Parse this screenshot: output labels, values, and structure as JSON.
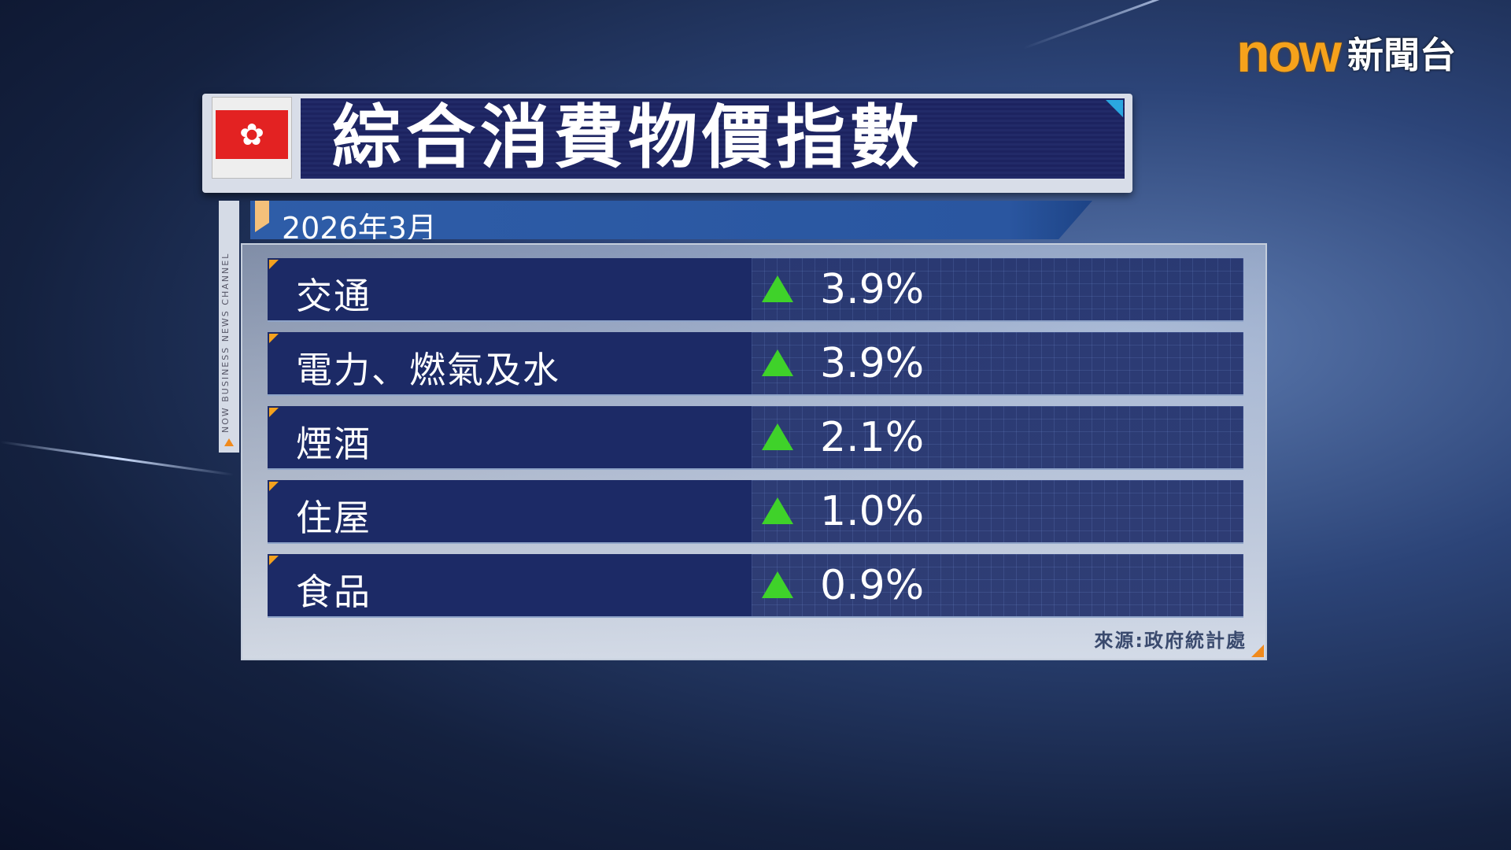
{
  "logo": {
    "brand": "now",
    "channel": "新聞台"
  },
  "title": "綜合消費物價指數",
  "flag_icon": "hong-kong-flag",
  "date": "2026年3月",
  "side_text": "NOW BUSINESS NEWS CHANNEL",
  "rows": [
    {
      "label": "交通",
      "value": "3.9%",
      "trend": "up"
    },
    {
      "label": "電力、燃氣及水",
      "value": "3.9%",
      "trend": "up"
    },
    {
      "label": "煙酒",
      "value": "2.1%",
      "trend": "up"
    },
    {
      "label": "住屋",
      "value": "1.0%",
      "trend": "up"
    },
    {
      "label": "食品",
      "value": "0.9%",
      "trend": "up"
    }
  ],
  "source": "來源:政府統計處",
  "colors": {
    "accent": "#f6a21b",
    "up": "#3fd22a",
    "title_bg": "#222a68"
  }
}
